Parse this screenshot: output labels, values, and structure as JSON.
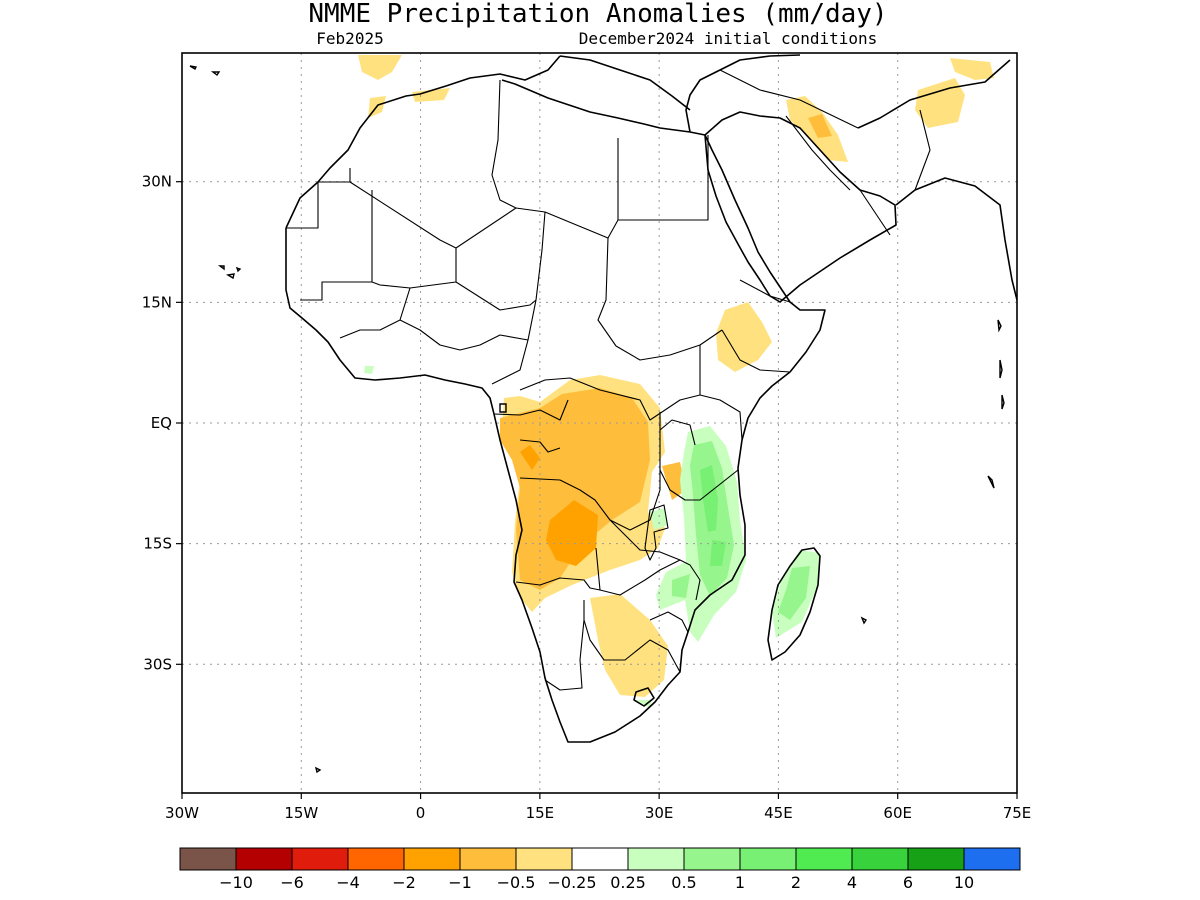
{
  "title": "NMME Precipitation Anomalies (mm/day)",
  "subtitle_left": "Feb2025",
  "subtitle_right": "December2024 initial conditions",
  "map": {
    "lon_range": [
      -30,
      75
    ],
    "lat_range": [
      -46,
      46
    ],
    "lon_ticks": [
      "30W",
      "15W",
      "0",
      "15E",
      "30E",
      "45E",
      "60E",
      "75E"
    ],
    "lat_ticks": [
      "30N",
      "15N",
      "EQ",
      "15S",
      "30S"
    ],
    "grid": true
  },
  "colorbar": {
    "colors": [
      "#7a5448",
      "#b40000",
      "#e01c0c",
      "#ff6600",
      "#ffa200",
      "#ffbd3c",
      "#ffe27f",
      "#ffffff",
      "#c8ffbf",
      "#96f58c",
      "#78f073",
      "#50eb50",
      "#37d23c",
      "#16a116",
      "#1e6ef0"
    ],
    "labels": [
      "−10",
      "−6",
      "−4",
      "−2",
      "−1",
      "−0.5",
      "−0.25",
      "0.25",
      "0.5",
      "1",
      "2",
      "4",
      "6",
      "10"
    ]
  }
}
